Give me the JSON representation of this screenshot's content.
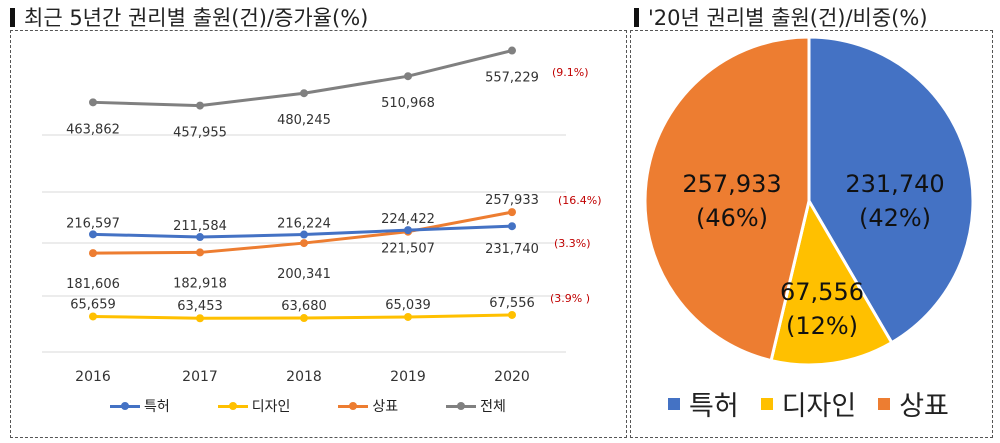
{
  "left_title": "최근 5년간 권리별 출원(건)/증가율(%)",
  "right_title": "'20년 권리별 출원(건)/비중(%)",
  "chart_data": [
    {
      "type": "line",
      "title": "최근 5년간 권리별 출원(건)/증가율(%)",
      "categories": [
        "2016",
        "2017",
        "2018",
        "2019",
        "2020"
      ],
      "x": [
        2016,
        2017,
        2018,
        2019,
        2020
      ],
      "series": [
        {
          "name": "특허",
          "color": "#4472C4",
          "values": [
            216597,
            211584,
            216224,
            224422,
            231740
          ],
          "labels": [
            "216,597",
            "211,584",
            "216,224",
            "224,422",
            "231,740"
          ],
          "growth": "(3.3%)"
        },
        {
          "name": "디자인",
          "color": "#FFC000",
          "values": [
            65659,
            63453,
            63680,
            65039,
            67556
          ],
          "labels": [
            "65,659",
            "63,453",
            "63,680",
            "65,039",
            "67,556"
          ],
          "growth": "(3.9% )"
        },
        {
          "name": "상표",
          "color": "#ED7D31",
          "values": [
            181606,
            182918,
            200341,
            221507,
            257933
          ],
          "labels": [
            "181,606",
            "182,918",
            "200,341",
            "221,507",
            "257,933"
          ],
          "growth": "(16.4%)"
        },
        {
          "name": "전체",
          "color": "#808080",
          "values": [
            463862,
            457955,
            480245,
            510968,
            557229
          ],
          "labels": [
            "463,862",
            "457,955",
            "480,245",
            "510,968",
            "557,229"
          ],
          "growth": "(9.1%)"
        }
      ],
      "growth_color": "#C00000",
      "legend": "bottom",
      "grid": true
    },
    {
      "type": "pie",
      "title": "'20년 권리별 출원(건)/비중(%)",
      "slices": [
        {
          "name": "특허",
          "value": 231740,
          "label": "231,740",
          "pct": "(42%)",
          "color": "#4472C4"
        },
        {
          "name": "디자인",
          "value": 67556,
          "label": "67,556",
          "pct": "(12%)",
          "color": "#FFC000"
        },
        {
          "name": "상표",
          "value": 257933,
          "label": "257,933",
          "pct": "(46%)",
          "color": "#ED7D31"
        }
      ],
      "legend": "bottom"
    }
  ]
}
